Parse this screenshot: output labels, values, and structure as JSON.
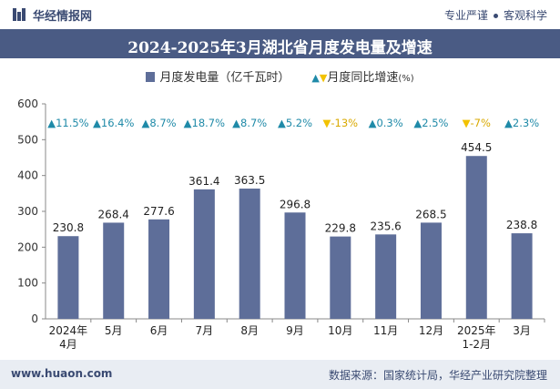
{
  "brand": {
    "name": "华经情报网",
    "tagline_1": "专业严谨",
    "tagline_2": "客观科学"
  },
  "title": "2024-2025年3月湖北省月度发电量及增速",
  "legend": {
    "bar_label": "月度发电量（亿千瓦时）",
    "growth_label": "月度同比增速",
    "growth_unit": "(%)"
  },
  "footer": {
    "website": "www.huaon.com",
    "source": "数据来源：国家统计局，华经产业研究院整理"
  },
  "colors": {
    "bar": "#5e6e99",
    "up": "#1f8aa8",
    "down": "#f2c200",
    "header": "#4a5b84"
  },
  "chart_data": {
    "type": "bar",
    "categories": [
      "2024年\n4月",
      "5月",
      "6月",
      "7月",
      "8月",
      "9月",
      "10月",
      "11月",
      "12月",
      "2025年\n1-2月",
      "3月"
    ],
    "series": [
      {
        "name": "月度发电量（亿千瓦时）",
        "values": [
          230.8,
          268.4,
          277.6,
          361.4,
          363.5,
          296.8,
          229.8,
          235.6,
          268.5,
          454.5,
          238.8
        ]
      },
      {
        "name": "月度同比增速",
        "values": [
          11.5,
          16.4,
          8.7,
          18.7,
          8.7,
          5.2,
          -13,
          0.3,
          2.5,
          -7,
          2.3
        ]
      }
    ],
    "value_labels": [
      "230.8",
      "268.4",
      "277.6",
      "361.4",
      "363.5",
      "296.8",
      "229.8",
      "235.6",
      "268.5",
      "454.5",
      "238.8"
    ],
    "growth_labels": [
      "11.5%",
      "16.4%",
      "8.7%",
      "18.7%",
      "8.7%",
      "5.2%",
      "-13%",
      "0.3%",
      "2.5%",
      "-7%",
      "2.3%"
    ],
    "yticks": [
      0,
      100,
      200,
      300,
      400,
      500,
      600
    ],
    "ylim": [
      0,
      600
    ],
    "grid": false,
    "legend_position": "top-center"
  }
}
